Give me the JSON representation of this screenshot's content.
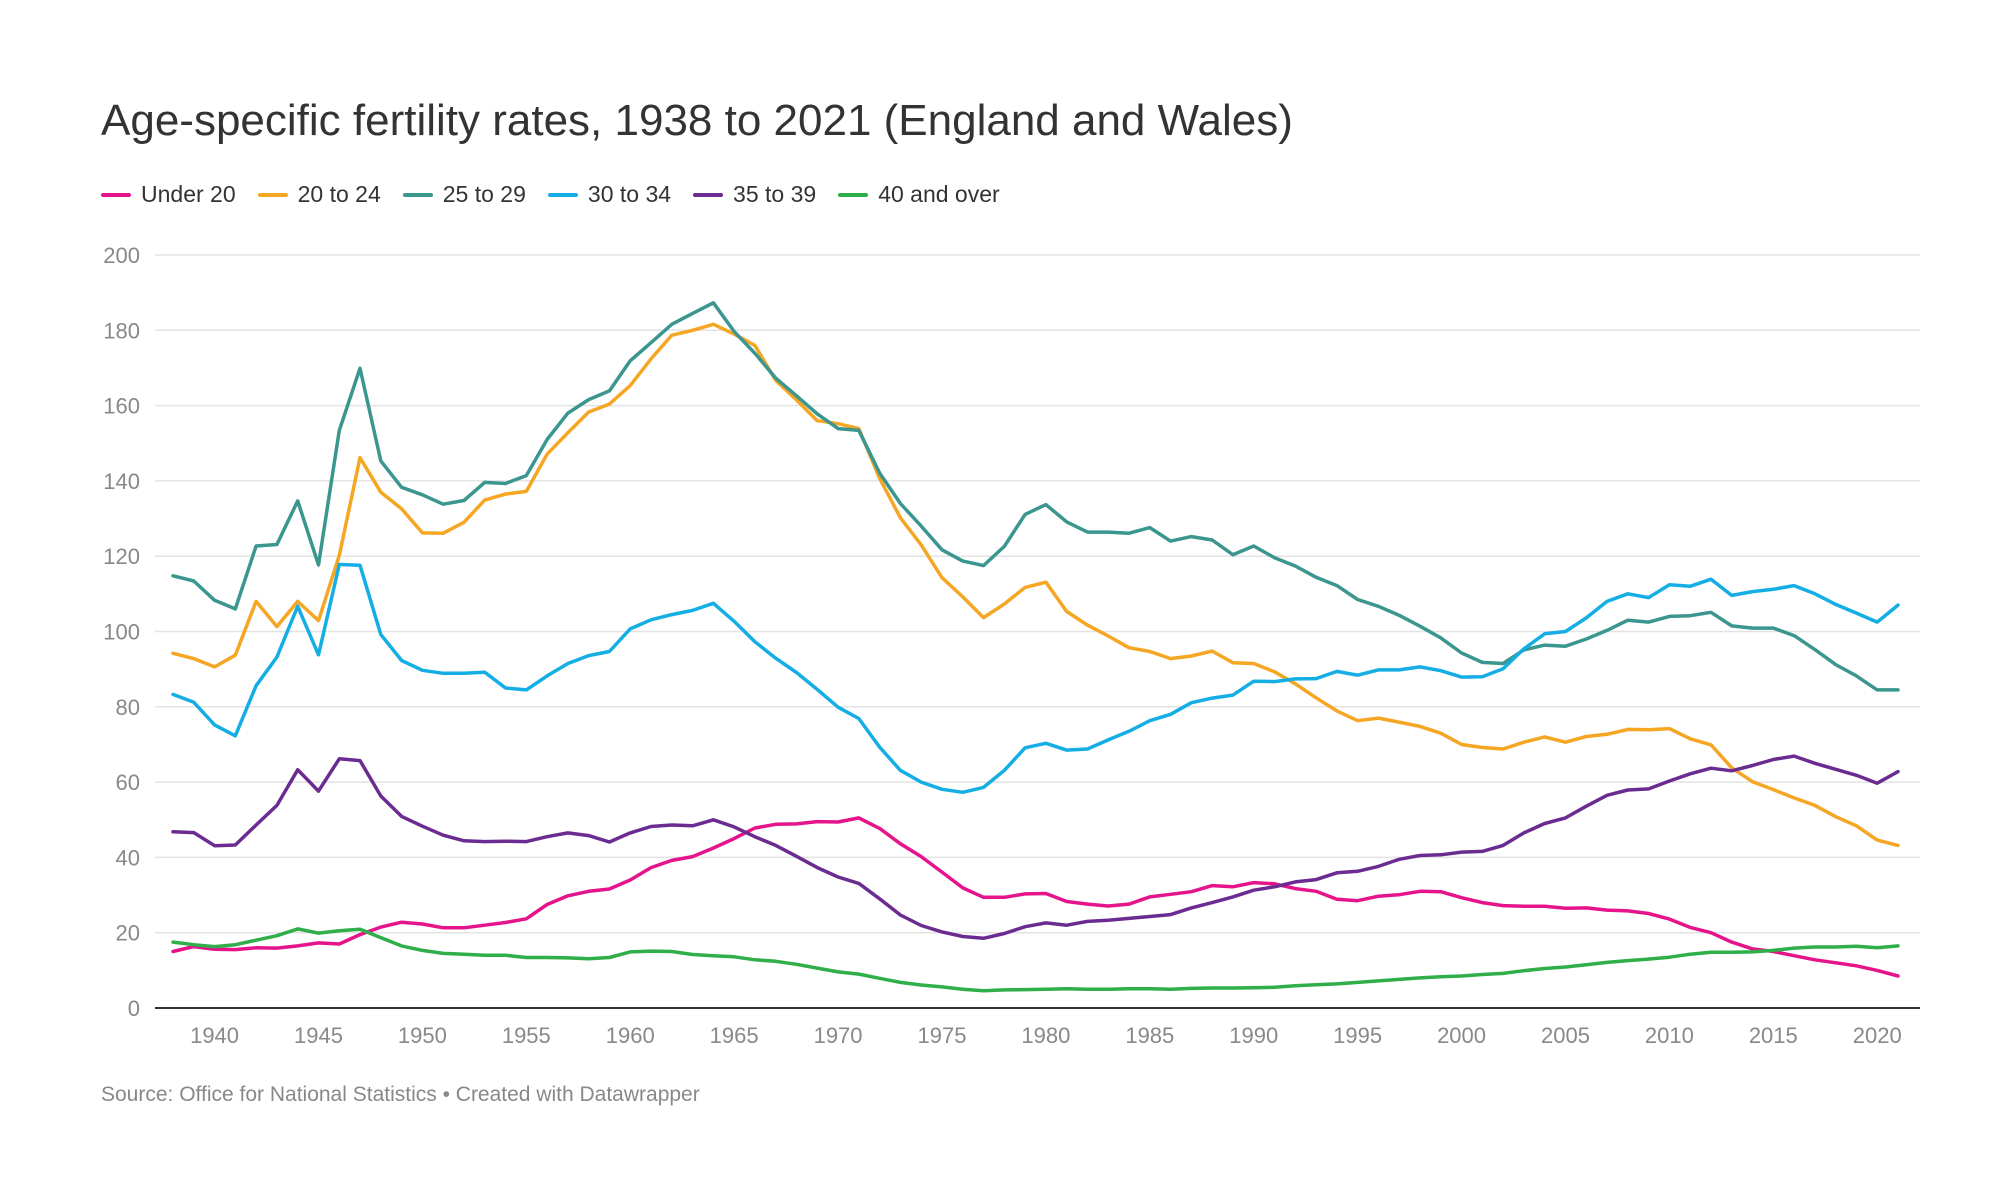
{
  "title": "Age-specific fertility rates, 1938 to 2021 (England and Wales)",
  "source": "Source: Office for National Statistics • Created with Datawrapper",
  "colors": {
    "text": "#333333",
    "muted": "#888888",
    "grid": "#e3e3e3",
    "axis": "#333333"
  },
  "chart_data": {
    "type": "line",
    "title": "Age-specific fertility rates, 1938 to 2021 (England and Wales)",
    "xlabel": "",
    "ylabel": "",
    "xlim": [
      1938,
      2021
    ],
    "ylim": [
      0,
      200
    ],
    "y_ticks": [
      0,
      20,
      40,
      60,
      80,
      100,
      120,
      140,
      160,
      180,
      200
    ],
    "x_ticks": [
      1940,
      1945,
      1950,
      1955,
      1960,
      1965,
      1970,
      1975,
      1980,
      1985,
      1990,
      1995,
      2000,
      2005,
      2010,
      2015,
      2020
    ],
    "grid": true,
    "legend_position": "top-left",
    "x": [
      1938,
      1939,
      1940,
      1941,
      1942,
      1943,
      1944,
      1945,
      1946,
      1947,
      1948,
      1949,
      1950,
      1951,
      1952,
      1953,
      1954,
      1955,
      1956,
      1957,
      1958,
      1959,
      1960,
      1961,
      1962,
      1963,
      1964,
      1965,
      1966,
      1967,
      1968,
      1969,
      1970,
      1971,
      1972,
      1973,
      1974,
      1975,
      1976,
      1977,
      1978,
      1979,
      1980,
      1981,
      1982,
      1983,
      1984,
      1985,
      1986,
      1987,
      1988,
      1989,
      1990,
      1991,
      1992,
      1993,
      1994,
      1995,
      1996,
      1997,
      1998,
      1999,
      2000,
      2001,
      2002,
      2003,
      2004,
      2005,
      2006,
      2007,
      2008,
      2009,
      2010,
      2011,
      2012,
      2013,
      2014,
      2015,
      2016,
      2017,
      2018,
      2019,
      2020,
      2021
    ],
    "series": [
      {
        "name": "Under 20",
        "color": "#e5148b",
        "values": [
          15,
          16.3,
          15.6,
          15.5,
          16,
          15.9,
          16.5,
          17.3,
          17,
          19.5,
          21.5,
          22.8,
          22.3,
          21.3,
          21.3,
          22,
          22.7,
          23.7,
          27.5,
          29.8,
          31,
          31.6,
          34,
          37.3,
          39.2,
          40.2,
          42.5,
          45,
          47.8,
          48.8,
          48.9,
          49.5,
          49.4,
          50.5,
          47.7,
          43.6,
          40.2,
          36.1,
          31.9,
          29.4,
          29.4,
          30.3,
          30.4,
          28.3,
          27.6,
          27.1,
          27.6,
          29.5,
          30.2,
          30.9,
          32.5,
          32.2,
          33.3,
          33,
          31.7,
          31,
          28.9,
          28.5,
          29.7,
          30.1,
          31,
          30.9,
          29.3,
          28,
          27.2,
          27,
          27,
          26.5,
          26.6,
          26,
          25.8,
          25.1,
          23.6,
          21.4,
          20,
          17.5,
          15.7,
          15,
          13.9,
          12.8,
          12,
          11.2,
          10,
          8.5
        ]
      },
      {
        "name": "20 to 24",
        "color": "#f5a623",
        "values": [
          94.2,
          92.8,
          90.6,
          93.7,
          108,
          101.3,
          108,
          102.9,
          120.2,
          146.2,
          137,
          132.6,
          126.2,
          126.1,
          129,
          134.9,
          136.5,
          137.2,
          147.1,
          152.8,
          158.3,
          160.4,
          165.3,
          172.4,
          178.7,
          180,
          181.6,
          179,
          176,
          166.7,
          161.5,
          156,
          155.2,
          153.9,
          140.7,
          130.2,
          123,
          114.3,
          109.2,
          103.7,
          107.3,
          111.7,
          113.1,
          105.3,
          101.7,
          98.8,
          95.7,
          94.7,
          92.8,
          93.5,
          94.8,
          91.7,
          91.5,
          89.3,
          86.1,
          82.4,
          78.9,
          76.3,
          77,
          75.9,
          74.8,
          73,
          70,
          69.2,
          68.8,
          70.6,
          72,
          70.6,
          72.1,
          72.7,
          74,
          73.9,
          74.2,
          71.5,
          69.9,
          63.8,
          60.1,
          58,
          55.8,
          53.8,
          50.8,
          48.4,
          44.6,
          43.2
        ]
      },
      {
        "name": "25 to 29",
        "color": "#3a968e",
        "values": [
          114.8,
          113.4,
          108.3,
          106,
          122.7,
          123.1,
          134.7,
          117.7,
          153.4,
          169.9,
          145.3,
          138.3,
          136.3,
          133.8,
          134.8,
          139.6,
          139.3,
          141.4,
          151,
          158,
          161.6,
          163.9,
          171.9,
          176.7,
          181.6,
          184.5,
          187.3,
          179.7,
          173.9,
          167.3,
          162.6,
          157.8,
          153.9,
          153.4,
          142.1,
          134,
          128,
          121.7,
          118.7,
          117.5,
          122.6,
          131.1,
          133.7,
          129.1,
          126.4,
          126.4,
          126.1,
          127.6,
          124,
          125.2,
          124.3,
          120.4,
          122.7,
          119.6,
          117.4,
          114.4,
          112.2,
          108.5,
          106.7,
          104.3,
          101.4,
          98.3,
          94.3,
          91.8,
          91.5,
          95.1,
          96.4,
          96.1,
          98,
          100.3,
          103,
          102.5,
          104,
          104.2,
          105.1,
          101.5,
          100.9,
          100.9,
          98.9,
          95.2,
          91.2,
          88.2,
          84.5,
          84.5
        ]
      },
      {
        "name": "30 to 34",
        "color": "#14aee5",
        "values": [
          83.3,
          81.2,
          75.2,
          72.3,
          85.6,
          93.2,
          106.7,
          93.8,
          117.8,
          117.6,
          99.2,
          92.3,
          89.7,
          88.9,
          88.9,
          89.2,
          85,
          84.5,
          88.2,
          91.5,
          93.6,
          94.7,
          100.7,
          103.1,
          104.5,
          105.6,
          107.5,
          102.7,
          97.3,
          92.9,
          89.1,
          84.6,
          79.9,
          76.9,
          69.3,
          63.1,
          60,
          58.1,
          57.3,
          58.6,
          63.1,
          69.1,
          70.3,
          68.5,
          68.8,
          71.2,
          73.5,
          76.3,
          78,
          81.1,
          82.3,
          83.1,
          86.8,
          86.7,
          87.4,
          87.5,
          89.4,
          88.4,
          89.8,
          89.8,
          90.6,
          89.6,
          87.9,
          88,
          90.1,
          95.4,
          99.4,
          100,
          103.6,
          108,
          110,
          109,
          112.4,
          112,
          113.9,
          109.6,
          110.6,
          111.2,
          112.2,
          110,
          107.2,
          104.9,
          102.5,
          107
        ]
      },
      {
        "name": "35 to 39",
        "color": "#6b2c91",
        "values": [
          46.8,
          46.6,
          43.1,
          43.3,
          48.6,
          53.8,
          63.3,
          57.6,
          66.2,
          65.7,
          56.3,
          50.9,
          48.3,
          45.9,
          44.4,
          44.2,
          44.3,
          44.2,
          45.5,
          46.5,
          45.8,
          44.1,
          46.5,
          48.2,
          48.6,
          48.4,
          50,
          48.1,
          45.5,
          43.2,
          40.3,
          37.3,
          34.8,
          33.1,
          29,
          24.7,
          21.9,
          20.2,
          19,
          18.5,
          19.8,
          21.6,
          22.6,
          22,
          23,
          23.3,
          23.8,
          24.3,
          24.8,
          26.6,
          28,
          29.5,
          31.3,
          32.2,
          33.5,
          34.1,
          35.9,
          36.3,
          37.6,
          39.5,
          40.5,
          40.7,
          41.4,
          41.6,
          43.2,
          46.5,
          49,
          50.5,
          53.6,
          56.5,
          57.9,
          58.2,
          60.3,
          62.2,
          63.7,
          63,
          64.4,
          66,
          66.9,
          65,
          63.4,
          61.8,
          59.7,
          62.8
        ]
      },
      {
        "name": "40 and over",
        "color": "#2fae4a",
        "values": [
          17.5,
          16.8,
          16.3,
          16.8,
          18,
          19.2,
          21,
          19.9,
          20.5,
          20.9,
          18.7,
          16.5,
          15.3,
          14.5,
          14.3,
          14,
          14,
          13.4,
          13.4,
          13.3,
          13.1,
          13.4,
          14.9,
          15.1,
          15,
          14.2,
          13.9,
          13.6,
          12.8,
          12.4,
          11.6,
          10.6,
          9.6,
          9,
          7.9,
          6.8,
          6.1,
          5.6,
          5,
          4.6,
          4.8,
          4.9,
          5,
          5.1,
          5,
          5,
          5.1,
          5.1,
          5,
          5.2,
          5.3,
          5.3,
          5.4,
          5.5,
          5.9,
          6.2,
          6.4,
          6.8,
          7.2,
          7.6,
          8,
          8.3,
          8.5,
          8.9,
          9.2,
          9.9,
          10.5,
          10.9,
          11.5,
          12.1,
          12.6,
          13,
          13.5,
          14.3,
          14.8,
          14.8,
          14.9,
          15.3,
          15.9,
          16.2,
          16.2,
          16.4,
          16,
          16.5
        ]
      }
    ]
  }
}
